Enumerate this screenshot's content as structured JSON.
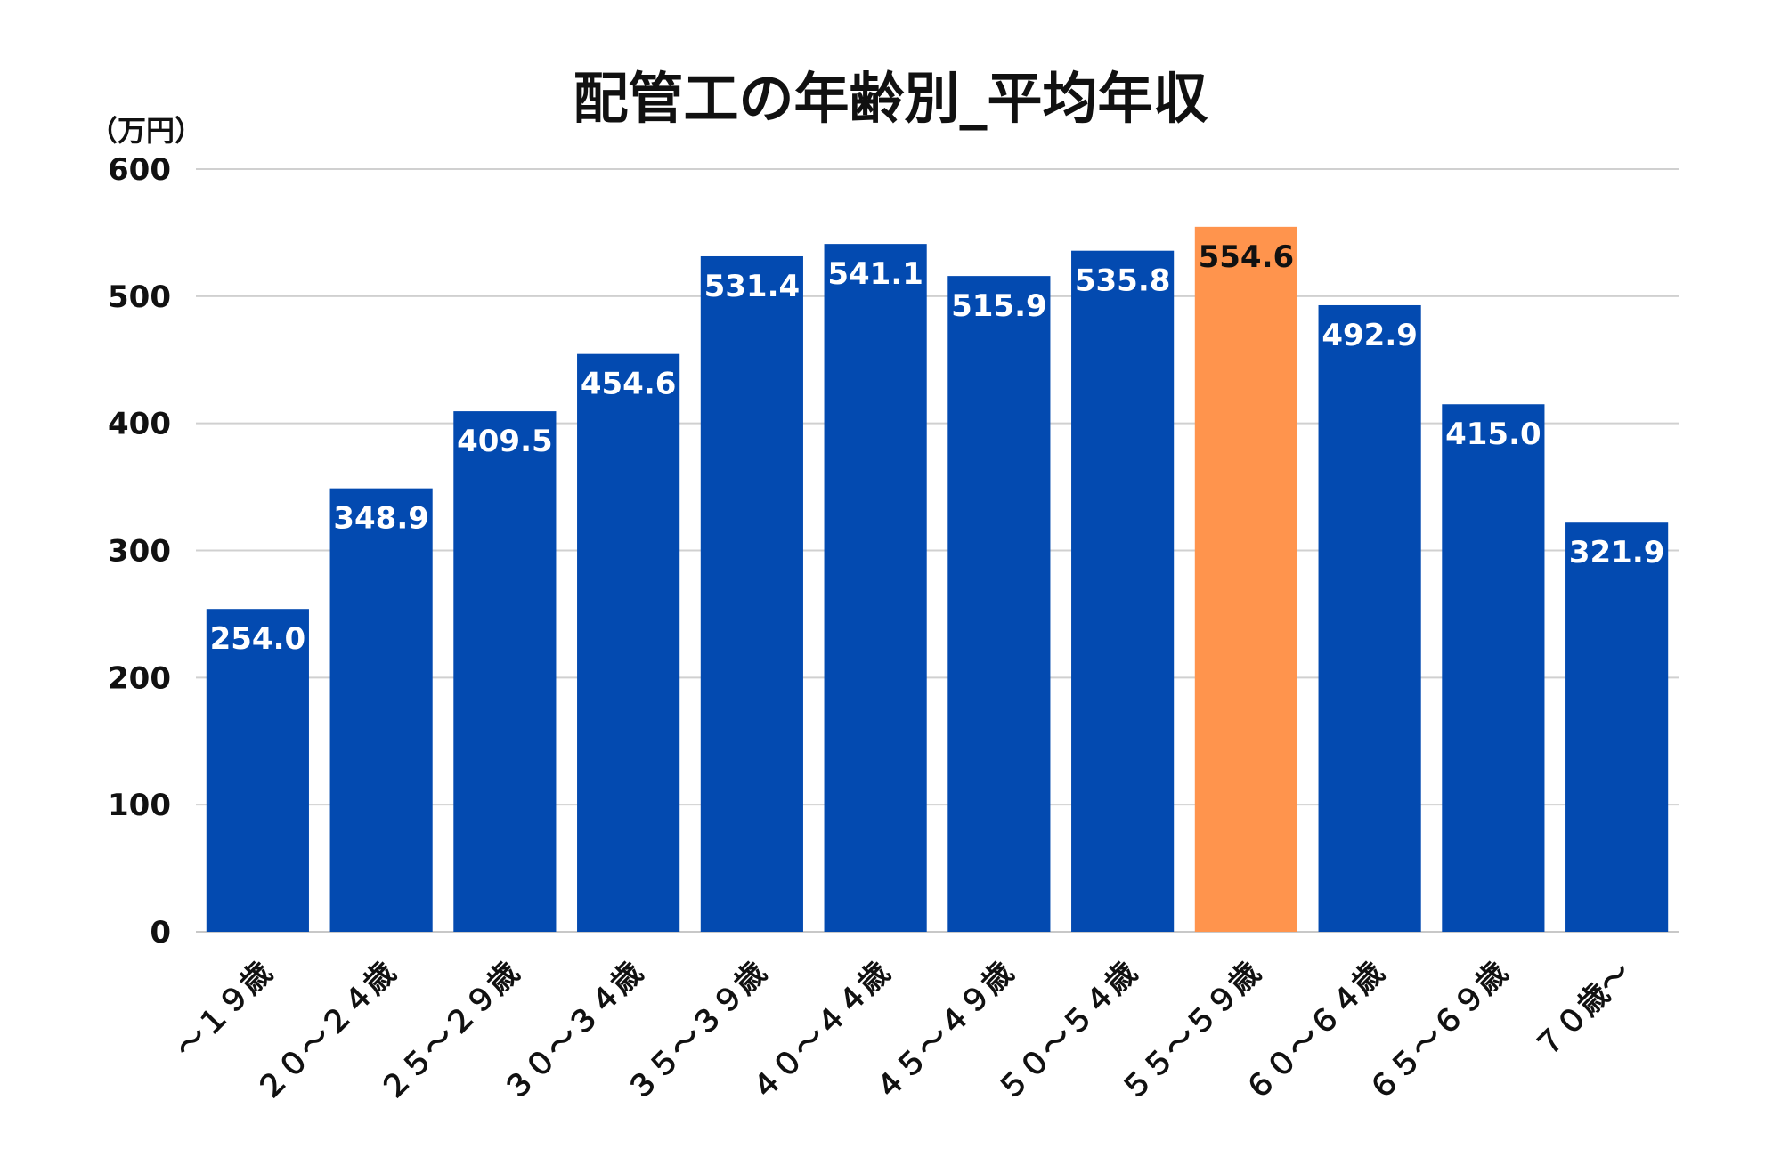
{
  "chart_data": {
    "type": "bar",
    "title": "配管工の年齢別_平均年収",
    "ylabel": "（万円）",
    "xlabel": "",
    "ylim": [
      0,
      600
    ],
    "yticks": [
      0,
      100,
      200,
      300,
      400,
      500,
      600
    ],
    "grid": true,
    "legend": "none",
    "categories": [
      "～１９歳",
      "２０～２４歳",
      "２５～２９歳",
      "３０～３４歳",
      "３５～３９歳",
      "４０～４４歳",
      "４５～４９歳",
      "５０～５４歳",
      "５５～５９歳",
      "６０～６４歳",
      "６５～６９歳",
      "７０歳～"
    ],
    "values": [
      254.0,
      348.9,
      409.5,
      454.6,
      531.4,
      541.1,
      515.9,
      535.8,
      554.6,
      492.9,
      415.0,
      321.9
    ],
    "value_labels": [
      "254.0",
      "348.9",
      "409.5",
      "454.6",
      "531.4",
      "541.1",
      "515.9",
      "535.8",
      "554.6",
      "492.9",
      "415.0",
      "321.9"
    ],
    "highlight_index": 8,
    "colors": {
      "bar": "#034ab0",
      "highlight": "#ff944d",
      "label_on_bar": "#ffffff",
      "label_on_highlight": "#111111"
    }
  }
}
